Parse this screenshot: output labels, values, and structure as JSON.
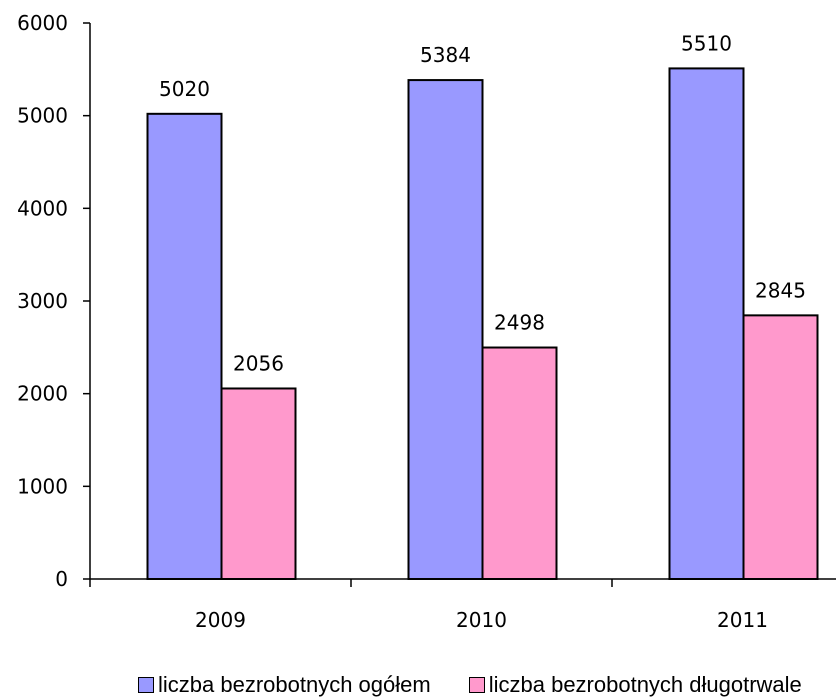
{
  "chart_data": {
    "type": "bar",
    "categories": [
      "2009",
      "2010",
      "2011"
    ],
    "series": [
      {
        "name": "liczba bezrobotnych ogółem",
        "values": [
          5020,
          5384,
          5510
        ],
        "color": "#9999ff"
      },
      {
        "name": "liczba bezrobotnych długotrwale",
        "values": [
          2056,
          2498,
          2845
        ],
        "color": "#ff99cc"
      }
    ],
    "ylim": [
      0,
      6000
    ],
    "yticks": [
      "0",
      "1000",
      "2000",
      "3000",
      "4000",
      "5000",
      "6000"
    ],
    "data_labels": [
      [
        "5020",
        "5384",
        "5510"
      ],
      [
        "2056",
        "2498",
        "2845"
      ]
    ],
    "legend_position": "bottom",
    "grid": false,
    "title": "",
    "xlabel": "",
    "ylabel": ""
  }
}
